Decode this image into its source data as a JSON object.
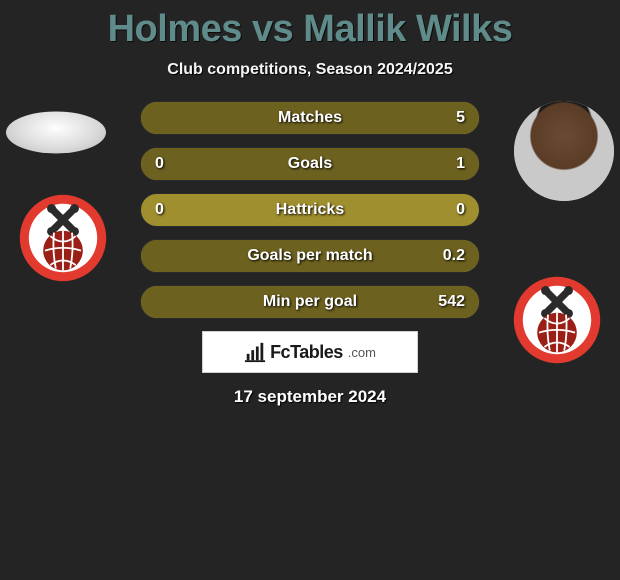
{
  "title_left": "Holmes",
  "title_mid": "vs",
  "title_right": "Mallik Wilks",
  "subtitle": "Club competitions, Season 2024/2025",
  "colors": {
    "page_bg": "#242424",
    "title_color": "#5f8b8b",
    "bar_bg": "#a08f2f",
    "bar_fill": "#6d611f",
    "text": "#ffffff"
  },
  "bars": [
    {
      "label": "Matches",
      "left": "",
      "right": "5",
      "left_pct": 0,
      "right_pct": 100
    },
    {
      "label": "Goals",
      "left": "0",
      "right": "1",
      "left_pct": 0,
      "right_pct": 100
    },
    {
      "label": "Hattricks",
      "left": "0",
      "right": "0",
      "left_pct": 0,
      "right_pct": 0
    },
    {
      "label": "Goals per match",
      "left": "",
      "right": "0.2",
      "left_pct": 0,
      "right_pct": 100
    },
    {
      "label": "Min per goal",
      "left": "",
      "right": "542",
      "left_pct": 0,
      "right_pct": 100
    }
  ],
  "badge": {
    "outer": "#e23a2e",
    "inner": "#ffffff",
    "ball": "#9a1f17",
    "cross": "#2b2b2b"
  },
  "footer": {
    "brand": "FcTables",
    "suffix": ".com"
  },
  "date": "17 september 2024"
}
